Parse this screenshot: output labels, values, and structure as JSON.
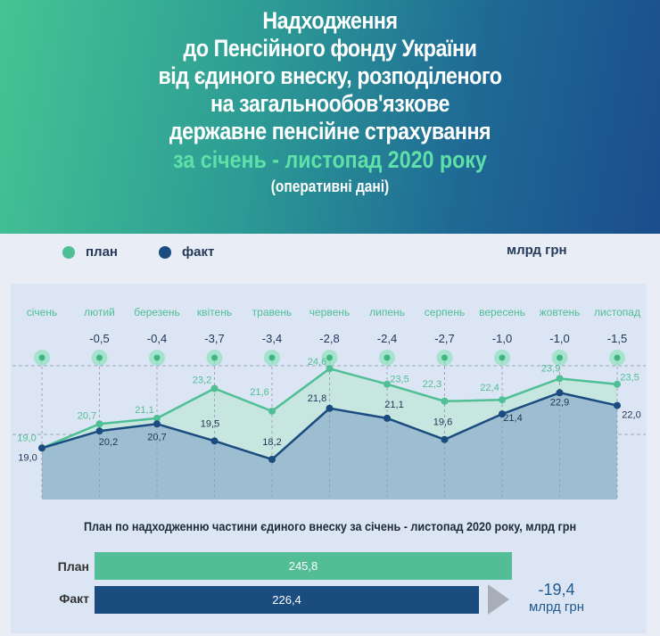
{
  "header": {
    "title_lines": [
      "Надходження",
      "до Пенсійного фонду України",
      "від єдиного внеску, розподіленого",
      "на загальнообов'язкове",
      "державне пенсійне страхування"
    ],
    "period": "за січень - листопад 2020 року",
    "note": "(оперативні дані)"
  },
  "legend": {
    "plan": "план",
    "fact": "факт"
  },
  "unit": "млрд грн",
  "colors": {
    "plan": "#4fbf95",
    "fact": "#1a4c80",
    "plan_fill": "#c8e6e0",
    "fact_fill": "#9dbdd0"
  },
  "chart_data": {
    "type": "line",
    "categories": [
      "січень",
      "лютий",
      "березень",
      "квітень",
      "травень",
      "червень",
      "липень",
      "серпень",
      "вересень",
      "жовтень",
      "листопад"
    ],
    "series": [
      {
        "name": "план",
        "values": [
          19.0,
          20.7,
          21.1,
          23.2,
          21.6,
          24.6,
          23.5,
          22.3,
          22.4,
          23.9,
          23.5
        ]
      },
      {
        "name": "факт",
        "values": [
          19.0,
          20.2,
          20.7,
          19.5,
          18.2,
          21.8,
          21.1,
          19.6,
          21.4,
          22.9,
          22.0
        ]
      }
    ],
    "differences": [
      "",
      "-0,5",
      "-0,4",
      "-3,7",
      "-3,4",
      "-2,8",
      "-2,4",
      "-2,7",
      "-1,0",
      "-1,0",
      "-1,5"
    ],
    "plan_labels": [
      "19,0",
      "20,7",
      "21,1",
      "23,2",
      "21,6",
      "24,6",
      "23,5",
      "22,3",
      "22,4",
      "23,9",
      "23,5"
    ],
    "fact_labels": [
      "19,0",
      "20,2",
      "20,7",
      "19,5",
      "18,2",
      "21,8",
      "21,1",
      "19,6",
      "21,4",
      "22,9",
      "22,0"
    ]
  },
  "summary": {
    "title": "План по надходженню частини єдиного внеску за січень - листопад 2020 року, млрд грн",
    "plan_label": "План",
    "plan_value": "245,8",
    "plan_num": 245.8,
    "fact_label": "Факт",
    "fact_value": "226,4",
    "fact_num": 226.4,
    "difference": "-19,4",
    "difference_unit": "млрд грн"
  }
}
